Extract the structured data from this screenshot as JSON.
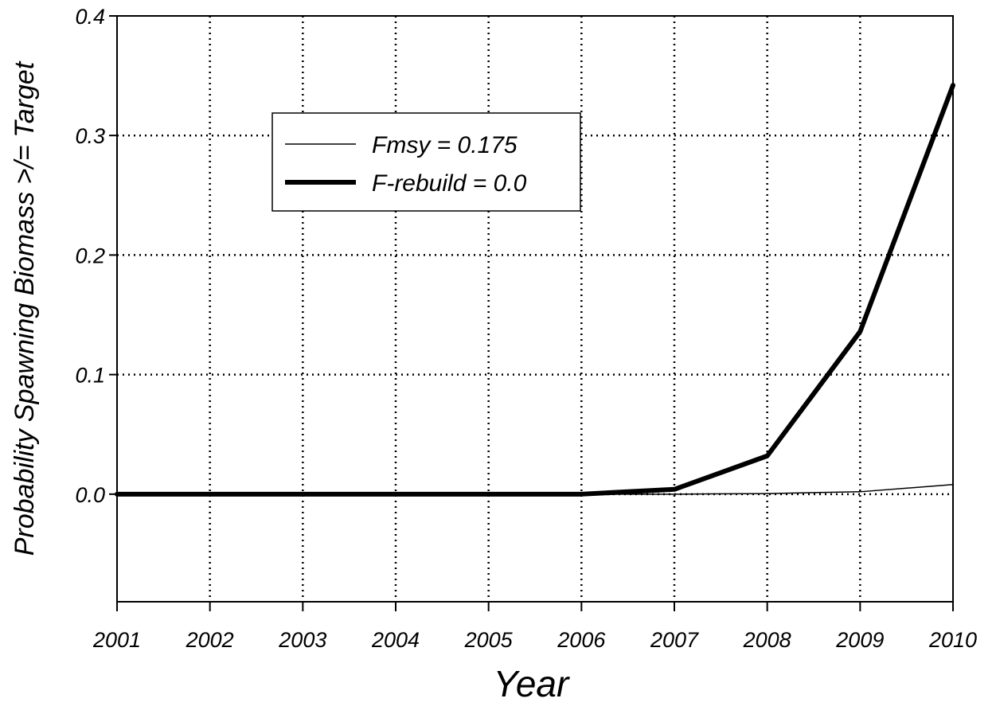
{
  "chart_data": {
    "type": "line",
    "xlabel": "Year",
    "ylabel": "Probability Spawning Biomass >/= Target",
    "x": [
      2001,
      2002,
      2003,
      2004,
      2005,
      2006,
      2007,
      2008,
      2009,
      2010
    ],
    "xlim": [
      2001,
      2010
    ],
    "ylim": [
      -0.09,
      0.4
    ],
    "yticks": [
      0.0,
      0.1,
      0.2,
      0.3,
      0.4
    ],
    "ytick_labels": [
      "0.0",
      "0.1",
      "0.2",
      "0.3",
      "0.4"
    ],
    "xtick_labels": [
      "2001",
      "2002",
      "2003",
      "2004",
      "2005",
      "2006",
      "2007",
      "2008",
      "2009",
      "2010"
    ],
    "grid": true,
    "legend_position": "upper-left",
    "series": [
      {
        "name": "Fmsy = 0.175",
        "values": [
          0,
          0,
          0,
          0,
          0,
          0,
          0.0,
          0.0005,
          0.002,
          0.008
        ],
        "line_width": "thin",
        "color": "#000000"
      },
      {
        "name": "F-rebuild = 0.0",
        "values": [
          0,
          0,
          0,
          0,
          0,
          0,
          0.004,
          0.032,
          0.136,
          0.342
        ],
        "line_width": "thick",
        "color": "#000000"
      }
    ]
  }
}
